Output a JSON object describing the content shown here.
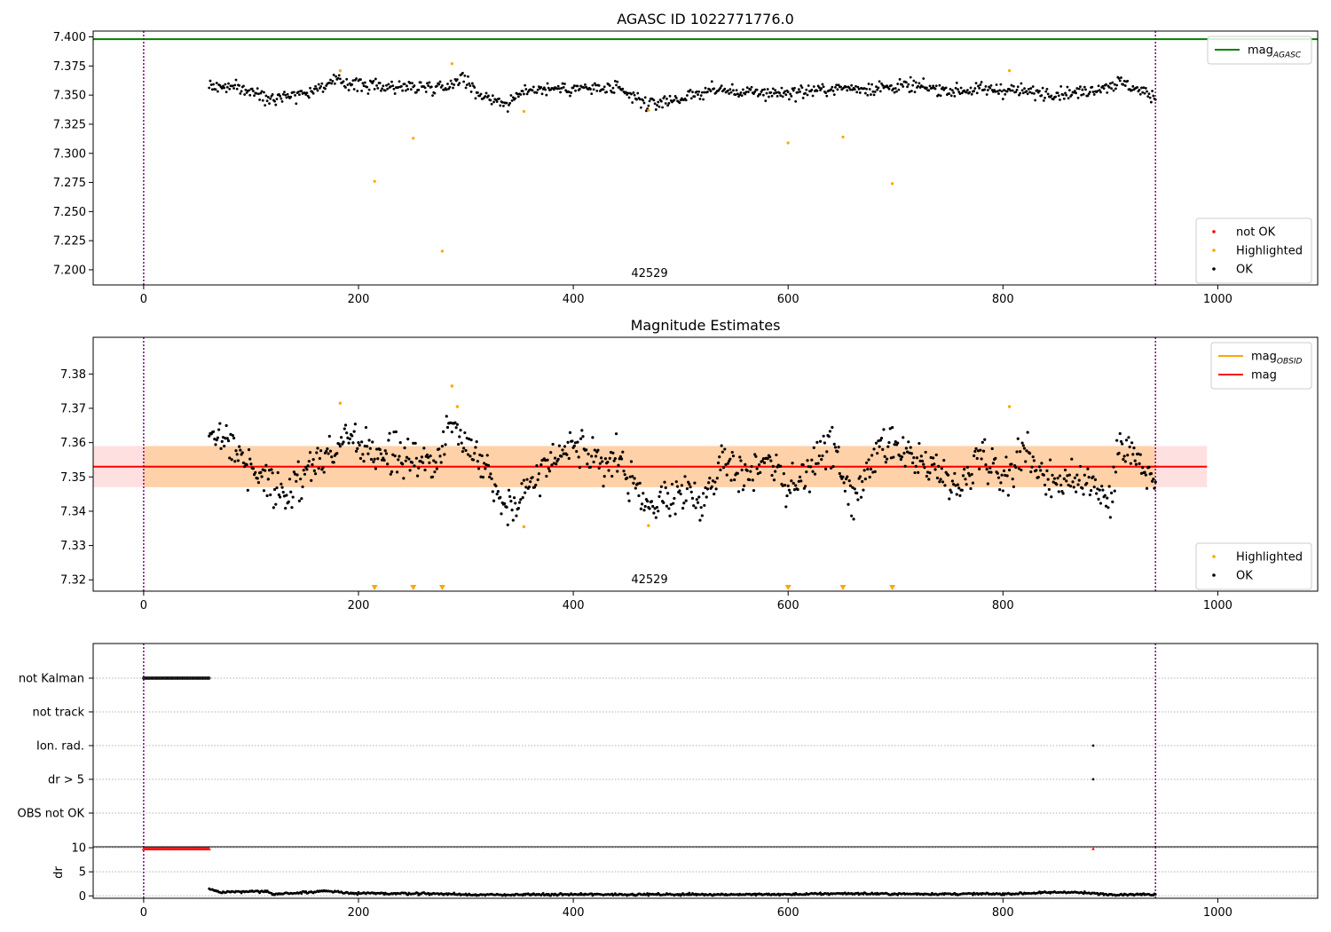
{
  "chart_data": [
    {
      "type": "scatter",
      "title": "AGASC ID 1022771776.0",
      "xlim": [
        -47,
        1093
      ],
      "ylim": [
        7.187,
        7.405
      ],
      "x_ticks": [
        0,
        200,
        400,
        600,
        800,
        1000
      ],
      "y_ticks": [
        7.2,
        7.225,
        7.25,
        7.275,
        7.3,
        7.325,
        7.35,
        7.375,
        7.4
      ],
      "grid": false,
      "vlines": [
        0,
        942
      ],
      "obsid_label": {
        "text": "42529",
        "x": 471
      },
      "mag_agasc": 7.398,
      "mag_agasc_xrange": [
        -47,
        1093
      ],
      "legends": {
        "top-right": [
          {
            "label": "mag",
            "sub": "AGASC",
            "color": "#008000",
            "kind": "line"
          }
        ],
        "bottom-right": [
          {
            "label": "not OK",
            "color": "#ff0000",
            "kind": "point"
          },
          {
            "label": "Highlighted",
            "color": "#ffa500",
            "kind": "point"
          },
          {
            "label": "OK",
            "color": "#000000",
            "kind": "point"
          }
        ]
      },
      "series": [
        {
          "name": "Highlighted",
          "color": "#ffa500",
          "x": [
            183,
            215,
            251,
            278,
            287,
            354,
            470,
            600,
            651,
            697,
            806
          ],
          "y": [
            7.371,
            7.276,
            7.313,
            7.216,
            7.377,
            7.336,
            7.337,
            7.309,
            7.314,
            7.274,
            7.371
          ]
        },
        {
          "name": "OK",
          "color": "#000000",
          "x_start": 61,
          "x_end": 942,
          "y_anchors": [
            [
              61,
              7.358
            ],
            [
              90,
              7.356
            ],
            [
              115,
              7.348
            ],
            [
              150,
              7.352
            ],
            [
              180,
              7.362
            ],
            [
              210,
              7.358
            ],
            [
              250,
              7.357
            ],
            [
              285,
              7.358
            ],
            [
              295,
              7.367
            ],
            [
              310,
              7.352
            ],
            [
              340,
              7.342
            ],
            [
              355,
              7.355
            ],
            [
              400,
              7.356
            ],
            [
              440,
              7.355
            ],
            [
              470,
              7.342
            ],
            [
              505,
              7.348
            ],
            [
              530,
              7.355
            ],
            [
              560,
              7.352
            ],
            [
              600,
              7.352
            ],
            [
              650,
              7.356
            ],
            [
              680,
              7.356
            ],
            [
              710,
              7.358
            ],
            [
              750,
              7.354
            ],
            [
              800,
              7.355
            ],
            [
              830,
              7.352
            ],
            [
              870,
              7.352
            ],
            [
              910,
              7.361
            ],
            [
              942,
              7.348
            ]
          ],
          "noise": 0.004
        }
      ]
    },
    {
      "type": "scatter",
      "title": "Magnitude Estimates",
      "xlim": [
        -47,
        1093
      ],
      "ylim": [
        7.3167,
        7.3907
      ],
      "x_ticks": [
        0,
        200,
        400,
        600,
        800,
        1000
      ],
      "y_ticks": [
        7.32,
        7.33,
        7.34,
        7.35,
        7.36,
        7.37,
        7.38
      ],
      "grid": false,
      "vlines": [
        0,
        942
      ],
      "obsid_label": {
        "text": "42529",
        "x": 471
      },
      "mag": 7.353,
      "mag_band": [
        7.347,
        7.359
      ],
      "mag_xrange": [
        -47,
        990
      ],
      "mag_obsid": 7.353,
      "mag_obsid_band": [
        7.347,
        7.359
      ],
      "mag_obsid_xrange": [
        0,
        942
      ],
      "below_range_markers_x": [
        215,
        251,
        278,
        600,
        651,
        697
      ],
      "legends": {
        "top-right": [
          {
            "label": "mag",
            "sub": "OBSID",
            "color": "#ffa500",
            "kind": "line"
          },
          {
            "label": "mag",
            "color": "#ff0000",
            "kind": "line"
          }
        ],
        "bottom-right": [
          {
            "label": "Highlighted",
            "color": "#ffa500",
            "kind": "point"
          },
          {
            "label": "OK",
            "color": "#000000",
            "kind": "point"
          }
        ]
      },
      "series": [
        {
          "name": "Highlighted",
          "color": "#ffa500",
          "x": [
            183,
            287,
            292,
            354,
            470,
            806
          ],
          "y": [
            7.3715,
            7.3765,
            7.3705,
            7.3355,
            7.3358,
            7.3705
          ]
        },
        {
          "name": "OK",
          "color": "#000000",
          "x_start": 61,
          "x_end": 942,
          "y_anchors": [
            [
              61,
              7.36
            ],
            [
              80,
              7.362
            ],
            [
              100,
              7.352
            ],
            [
              120,
              7.348
            ],
            [
              135,
              7.344
            ],
            [
              150,
              7.352
            ],
            [
              170,
              7.356
            ],
            [
              190,
              7.362
            ],
            [
              210,
              7.357
            ],
            [
              240,
              7.356
            ],
            [
              270,
              7.353
            ],
            [
              290,
              7.368
            ],
            [
              300,
              7.36
            ],
            [
              320,
              7.353
            ],
            [
              340,
              7.34
            ],
            [
              360,
              7.348
            ],
            [
              380,
              7.356
            ],
            [
              400,
              7.36
            ],
            [
              420,
              7.353
            ],
            [
              440,
              7.356
            ],
            [
              470,
              7.34
            ],
            [
              500,
              7.346
            ],
            [
              520,
              7.342
            ],
            [
              540,
              7.356
            ],
            [
              560,
              7.35
            ],
            [
              580,
              7.357
            ],
            [
              600,
              7.346
            ],
            [
              620,
              7.352
            ],
            [
              640,
              7.36
            ],
            [
              660,
              7.342
            ],
            [
              680,
              7.356
            ],
            [
              700,
              7.358
            ],
            [
              720,
              7.354
            ],
            [
              740,
              7.352
            ],
            [
              760,
              7.346
            ],
            [
              780,
              7.358
            ],
            [
              800,
              7.35
            ],
            [
              820,
              7.358
            ],
            [
              840,
              7.35
            ],
            [
              860,
              7.348
            ],
            [
              880,
              7.35
            ],
            [
              900,
              7.342
            ],
            [
              910,
              7.362
            ],
            [
              930,
              7.352
            ],
            [
              942,
              7.347
            ]
          ],
          "noise": 0.004
        }
      ]
    },
    {
      "type": "scatter",
      "title": "",
      "xlim": [
        -47,
        1093
      ],
      "categories": [
        "not Kalman",
        "not track",
        "Ion. rad.",
        "dr > 5",
        "OBS not OK"
      ],
      "grid": "horizontal dotted",
      "vlines": [
        0,
        942
      ],
      "flag_series": [
        {
          "category": "not Kalman",
          "x_start": 0,
          "x_end": 61,
          "color": "#000000"
        },
        {
          "category": "Ion. rad.",
          "x": [
            884
          ],
          "color": "#000000"
        },
        {
          "category": "dr > 5",
          "x": [
            884
          ],
          "color": "#000000"
        }
      ]
    },
    {
      "type": "scatter",
      "title": "",
      "ylabel": "dr",
      "xlim": [
        -47,
        1093
      ],
      "ylim": [
        -0.5,
        10.2
      ],
      "x_ticks": [
        0,
        200,
        400,
        600,
        800,
        1000
      ],
      "y_ticks": [
        0,
        5,
        10
      ],
      "grid": "horizontal dotted",
      "vlines": [
        0,
        942
      ],
      "series": [
        {
          "name": "not OK",
          "color": "#ff0000",
          "marker": "triangle",
          "x_start": 0,
          "x_end": 61,
          "y_const": 9.8,
          "extra_x": [
            884
          ]
        },
        {
          "name": "OK",
          "color": "#000000",
          "x_start": 61,
          "x_end": 942,
          "y_anchors": [
            [
              61,
              1.4
            ],
            [
              70,
              0.8
            ],
            [
              90,
              0.9
            ],
            [
              115,
              0.9
            ],
            [
              120,
              0.3
            ],
            [
              150,
              0.7
            ],
            [
              170,
              1.0
            ],
            [
              200,
              0.5
            ],
            [
              260,
              0.5
            ],
            [
              320,
              0.2
            ],
            [
              400,
              0.3
            ],
            [
              600,
              0.3
            ],
            [
              650,
              0.5
            ],
            [
              700,
              0.4
            ],
            [
              800,
              0.4
            ],
            [
              860,
              0.8
            ],
            [
              900,
              0.3
            ],
            [
              942,
              0.3
            ]
          ],
          "noise": 0.15
        }
      ]
    }
  ]
}
